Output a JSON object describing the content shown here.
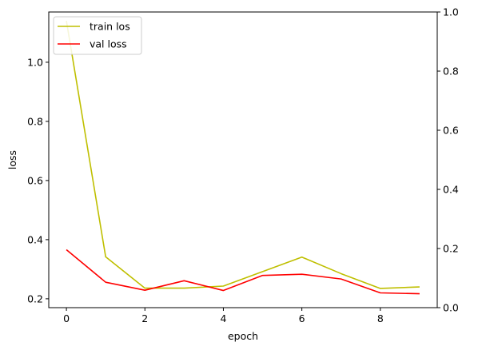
{
  "chart_data": {
    "type": "line",
    "xlabel": "epoch",
    "ylabel": "loss",
    "x": [
      0,
      1,
      2,
      3,
      4,
      5,
      6,
      7,
      8,
      9
    ],
    "xlim": [
      -0.45,
      9.45
    ],
    "ylim": [
      0.17,
      1.17
    ],
    "y2lim": [
      0,
      1
    ],
    "x_ticks": [
      0,
      2,
      4,
      6,
      8
    ],
    "y_ticks": [
      0.2,
      0.4,
      0.6,
      0.8,
      1.0
    ],
    "y_tick_labels": [
      "0.2",
      "0.4",
      "0.6",
      "0.8",
      "1.0"
    ],
    "y2_ticks": [
      0.0,
      0.2,
      0.4,
      0.6,
      0.8,
      1.0
    ],
    "y2_tick_labels": [
      "0.0",
      "0.2",
      "0.4",
      "0.6",
      "0.8",
      "1.0"
    ],
    "grid": false,
    "legend_position": "top-left",
    "series": [
      {
        "name": "train los",
        "color": "#bfbf00",
        "values": [
          1.14,
          0.342,
          0.236,
          0.236,
          0.243,
          0.292,
          0.341,
          0.285,
          0.235,
          0.24
        ]
      },
      {
        "name": "val loss",
        "color": "#ff0000",
        "values": [
          0.366,
          0.256,
          0.229,
          0.261,
          0.228,
          0.279,
          0.283,
          0.267,
          0.22,
          0.217
        ]
      }
    ]
  }
}
